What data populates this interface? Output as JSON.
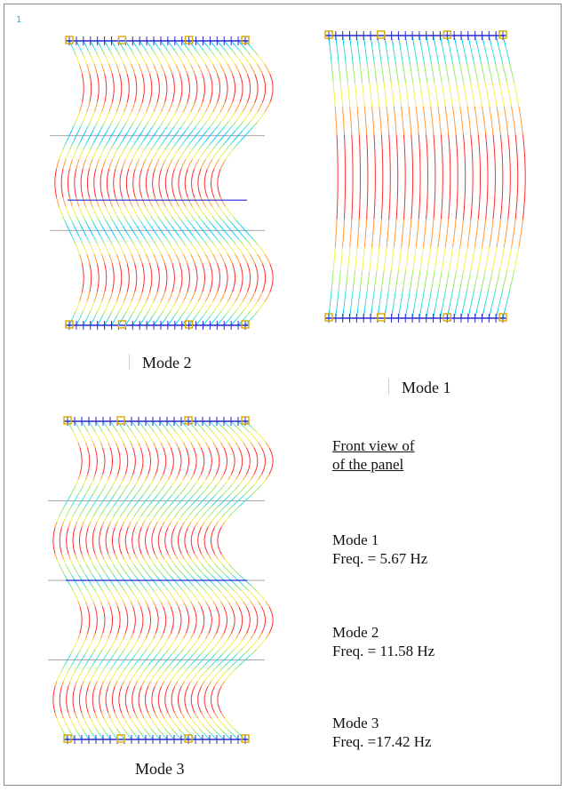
{
  "screen": {
    "corner_label": "1"
  },
  "panels": [
    {
      "caption": "Mode 2",
      "mode": 2,
      "waves": 3
    },
    {
      "caption": "Mode 1",
      "mode": 1,
      "waves": 1
    },
    {
      "caption": "Mode 3",
      "mode": 3,
      "waves": 4
    }
  ],
  "legend": {
    "title_line1": "Front view of",
    "title_line2": "of the panel",
    "modes": [
      {
        "mode_label": "Mode 1",
        "freq_label": "Freq. = 5.67 Hz"
      },
      {
        "mode_label": "Mode 2",
        "freq_label": "Freq. = 11.58 Hz"
      },
      {
        "mode_label": "Mode 3",
        "freq_label": "Freq. =17.42 Hz"
      }
    ]
  },
  "colors": {
    "edge": "#2a2ad0",
    "node": "#d6a800",
    "contour": [
      "#00c8ff",
      "#35e0d0",
      "#9be86a",
      "#f0f050",
      "#ff9a3a",
      "#ff2a2a"
    ],
    "node_line": "#a8a8a8"
  }
}
